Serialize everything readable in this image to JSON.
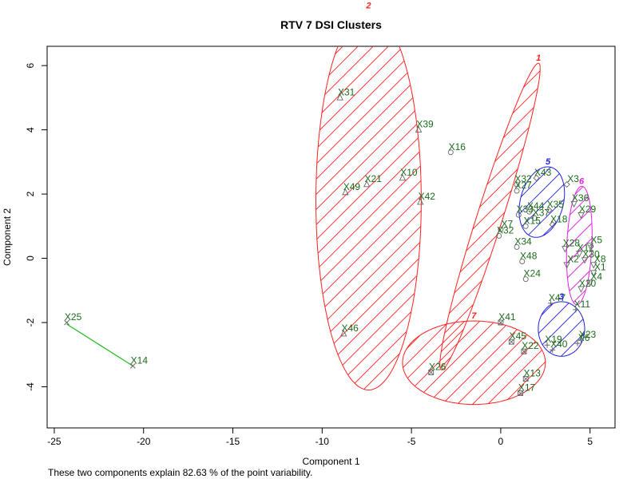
{
  "chart_data": {
    "type": "scatter",
    "title": "RTV 7 DSI Clusters",
    "xlabel": "Component 1",
    "ylabel": "Component 2",
    "xlim": [
      -25.4,
      6.4
    ],
    "ylim": [
      -5.28,
      6.6
    ],
    "xticks": [
      -25,
      -20,
      -15,
      -10,
      -5,
      0,
      5
    ],
    "yticks": [
      -4,
      -2,
      0,
      2,
      4,
      6
    ],
    "grid": false,
    "colors": {
      "label": "#1a6b1a",
      "red": "#ff2020",
      "blue": "#1f1fe0",
      "green": "#22bb22",
      "magenta": "#e020e0",
      "marker": "#666666"
    },
    "points": [
      {
        "label": "X31",
        "x": -9.0,
        "y": 5.0,
        "shape": "triangle"
      },
      {
        "label": "X39",
        "x": -4.6,
        "y": 4.0,
        "shape": "triangle"
      },
      {
        "label": "X21",
        "x": -7.5,
        "y": 2.3,
        "shape": "triangle"
      },
      {
        "label": "X10",
        "x": -5.5,
        "y": 2.5,
        "shape": "triangle"
      },
      {
        "label": "X49",
        "x": -8.7,
        "y": 2.05,
        "shape": "triangle"
      },
      {
        "label": "X42",
        "x": -4.5,
        "y": 1.75,
        "shape": "triangle"
      },
      {
        "label": "X46",
        "x": -8.8,
        "y": -2.35,
        "shape": "triangle"
      },
      {
        "label": "X16",
        "x": -2.8,
        "y": 3.3,
        "shape": "circle"
      },
      {
        "label": "X32",
        "x": 0.9,
        "y": 2.3,
        "shape": "circle"
      },
      {
        "label": "X27",
        "x": 0.9,
        "y": 2.1,
        "shape": "circle"
      },
      {
        "label": "X33",
        "x": 1.0,
        "y": 1.35,
        "shape": "circle"
      },
      {
        "label": "X44",
        "x": 1.6,
        "y": 1.45,
        "shape": "circle"
      },
      {
        "label": "X37",
        "x": 1.9,
        "y": 1.25,
        "shape": "circle"
      },
      {
        "label": "X15",
        "x": 1.4,
        "y": 1.0,
        "shape": "circle"
      },
      {
        "label": "X7",
        "x": 0.0,
        "y": 0.9,
        "shape": "circle"
      },
      {
        "label": "X32",
        "x": -0.1,
        "y": 0.7,
        "shape": "circle"
      },
      {
        "label": "X34",
        "x": 0.9,
        "y": 0.35,
        "shape": "circle"
      },
      {
        "label": "X48",
        "x": 1.2,
        "y": -0.1,
        "shape": "circle"
      },
      {
        "label": "X24",
        "x": 1.4,
        "y": -0.65,
        "shape": "circle"
      },
      {
        "label": "X43",
        "x": 2.0,
        "y": 2.5,
        "shape": "diamond"
      },
      {
        "label": "X3",
        "x": 3.7,
        "y": 2.3,
        "shape": "diamond"
      },
      {
        "label": "X35",
        "x": 2.7,
        "y": 1.5,
        "shape": "diamond"
      },
      {
        "label": "X18",
        "x": 2.9,
        "y": 1.05,
        "shape": "diamond"
      },
      {
        "label": "X36",
        "x": 4.1,
        "y": 1.7,
        "shape": "down-triangle"
      },
      {
        "label": "X29",
        "x": 4.5,
        "y": 1.35,
        "shape": "down-triangle"
      },
      {
        "label": "X28",
        "x": 3.6,
        "y": 0.3,
        "shape": "down-triangle"
      },
      {
        "label": "X5",
        "x": 5.0,
        "y": 0.4,
        "shape": "down-triangle"
      },
      {
        "label": "X12",
        "x": 4.4,
        "y": 0.15,
        "shape": "down-triangle"
      },
      {
        "label": "X2",
        "x": 3.7,
        "y": -0.2,
        "shape": "down-triangle"
      },
      {
        "label": "X30",
        "x": 4.7,
        "y": -0.05,
        "shape": "down-triangle"
      },
      {
        "label": "X8",
        "x": 5.2,
        "y": -0.2,
        "shape": "down-triangle"
      },
      {
        "label": "X1",
        "x": 5.2,
        "y": -0.45,
        "shape": "down-triangle"
      },
      {
        "label": "X4",
        "x": 5.0,
        "y": -0.75,
        "shape": "down-triangle"
      },
      {
        "label": "X20",
        "x": 4.5,
        "y": -0.95,
        "shape": "down-triangle"
      },
      {
        "label": "X47",
        "x": 2.8,
        "y": -1.4,
        "shape": "plus"
      },
      {
        "label": "X11",
        "x": 4.2,
        "y": -1.6,
        "shape": "plus"
      },
      {
        "label": "X19",
        "x": 2.6,
        "y": -2.7,
        "shape": "plus"
      },
      {
        "label": "X40",
        "x": 2.9,
        "y": -2.85,
        "shape": "plus"
      },
      {
        "label": "X6",
        "x": 4.3,
        "y": -2.65,
        "shape": "plus"
      },
      {
        "label": "X23",
        "x": 4.5,
        "y": -2.55,
        "shape": "plus"
      },
      {
        "label": "X41",
        "x": 0.0,
        "y": -2.0,
        "shape": "box"
      },
      {
        "label": "X45",
        "x": 0.6,
        "y": -2.6,
        "shape": "box"
      },
      {
        "label": "X22",
        "x": 1.3,
        "y": -2.9,
        "shape": "box"
      },
      {
        "label": "X26",
        "x": -3.9,
        "y": -3.55,
        "shape": "box"
      },
      {
        "label": "X13",
        "x": 1.4,
        "y": -3.75,
        "shape": "box"
      },
      {
        "label": "X17",
        "x": 1.1,
        "y": -4.2,
        "shape": "box"
      },
      {
        "label": "X25",
        "x": -24.3,
        "y": -2.0,
        "shape": "cross"
      },
      {
        "label": "X14",
        "x": -20.6,
        "y": -3.35,
        "shape": "cross"
      }
    ],
    "clusters": [
      {
        "id": "1",
        "color": "red",
        "hatched": true,
        "cx": -0.6,
        "cy": 1.3,
        "rx": 5.5,
        "ry": 0.65,
        "angle_deg": 60
      },
      {
        "id": "2",
        "color": "red",
        "hatched": true,
        "cx": -7.4,
        "cy": 1.8,
        "rx": 5.9,
        "ry": 2.95,
        "angle_deg": 90
      },
      {
        "id": "3",
        "color": "blue",
        "hatched": true,
        "cx": 3.4,
        "cy": -2.2,
        "rx": 1.3,
        "ry": 0.85,
        "angle_deg": 0
      },
      {
        "id": "5",
        "color": "blue",
        "hatched": true,
        "cx": 2.3,
        "cy": 1.75,
        "rx": 1.35,
        "ry": 1.0,
        "angle_deg": 30
      },
      {
        "id": "6",
        "color": "magenta",
        "hatched": true,
        "cx": 4.4,
        "cy": 0.4,
        "rx": 1.85,
        "ry": 0.7,
        "angle_deg": 85
      },
      {
        "id": "7",
        "color": "red",
        "hatched": true,
        "cx": -1.5,
        "cy": -3.25,
        "rx": 4.0,
        "ry": 1.3,
        "angle_deg": 0
      }
    ],
    "segments": [
      {
        "color": "green",
        "x1": -24.3,
        "y1": -2.05,
        "x2": -20.6,
        "y2": -3.35
      }
    ],
    "cluster_label_colors": {
      "1": "red",
      "2": "red",
      "3": "blue",
      "5": "blue",
      "6": "magenta",
      "7": "red"
    }
  },
  "footnote": "These two components explain 82.63 % of the point variability."
}
